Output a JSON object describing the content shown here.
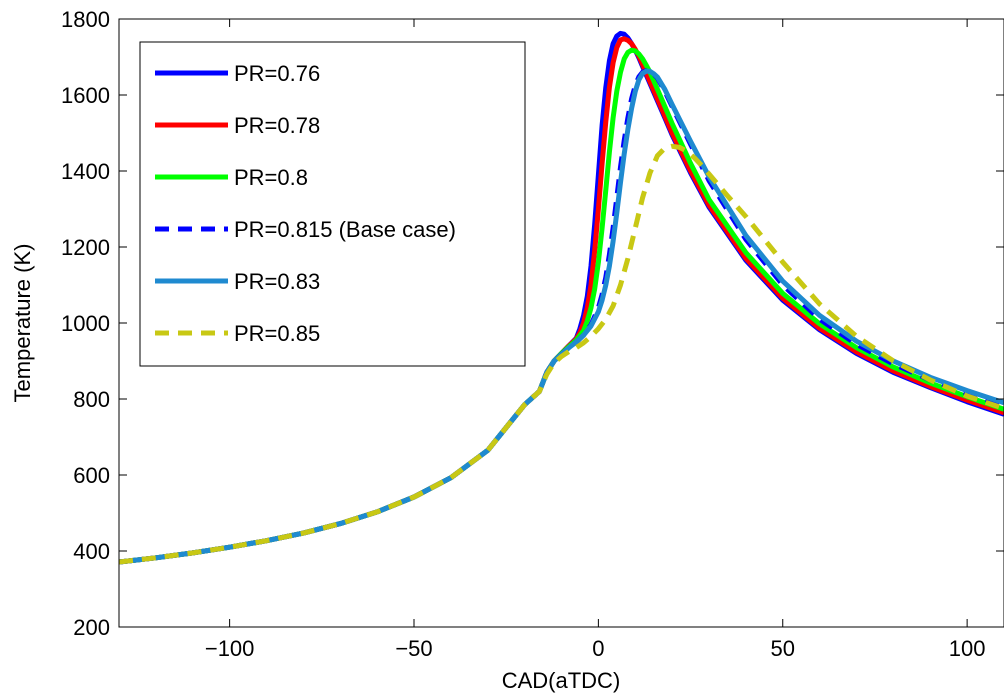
{
  "chart_data": {
    "type": "line",
    "title": "",
    "xlabel": "CAD(aTDC)",
    "ylabel": "Temperature (K)",
    "xlim": [
      -130,
      110
    ],
    "ylim": [
      200,
      1800
    ],
    "x_ticks": [
      -100,
      -50,
      0,
      50,
      100
    ],
    "y_ticks": [
      200,
      400,
      600,
      800,
      1000,
      1200,
      1400,
      1600,
      1800
    ],
    "x_tick_labels": [
      "−100",
      "−50",
      "0",
      "50",
      "100"
    ],
    "y_tick_labels": [
      "200",
      "400",
      "600",
      "800",
      "1000",
      "1200",
      "1400",
      "1600",
      "1800"
    ],
    "grid": false,
    "legend_position": "top-left",
    "series": [
      {
        "name": "PR=0.76",
        "color": "#0000ff",
        "dash": "solid",
        "x": [
          -130,
          -120,
          -110,
          -100,
          -90,
          -80,
          -70,
          -60,
          -50,
          -40,
          -30,
          -20,
          -16,
          -14,
          -12,
          -10,
          -8,
          -6,
          -5,
          -4,
          -3,
          -2,
          -1,
          0,
          1,
          2,
          3,
          4,
          5,
          6,
          7,
          8,
          9,
          10,
          11,
          12,
          14,
          16,
          18,
          20,
          25,
          30,
          40,
          50,
          60,
          70,
          80,
          90,
          100,
          110
        ],
        "y": [
          371,
          382,
          395,
          410,
          427,
          447,
          472,
          503,
          542,
          593,
          665,
          785,
          820,
          870,
          900,
          920,
          940,
          960,
          985,
          1020,
          1070,
          1150,
          1260,
          1390,
          1520,
          1620,
          1690,
          1735,
          1755,
          1762,
          1760,
          1750,
          1735,
          1718,
          1698,
          1675,
          1630,
          1585,
          1540,
          1495,
          1395,
          1305,
          1165,
          1060,
          982,
          920,
          870,
          830,
          793,
          760
        ]
      },
      {
        "name": "PR=0.78",
        "color": "#ff0000",
        "dash": "solid",
        "x": [
          -130,
          -120,
          -110,
          -100,
          -90,
          -80,
          -70,
          -60,
          -50,
          -40,
          -30,
          -20,
          -16,
          -14,
          -12,
          -10,
          -8,
          -6,
          -5,
          -4,
          -3,
          -2,
          -1,
          0,
          1,
          2,
          3,
          4,
          5,
          6,
          7,
          8,
          9,
          10,
          11,
          12,
          14,
          16,
          18,
          20,
          25,
          30,
          40,
          50,
          60,
          70,
          80,
          90,
          100,
          110
        ],
        "y": [
          371,
          382,
          395,
          410,
          427,
          447,
          472,
          503,
          542,
          593,
          665,
          785,
          820,
          870,
          900,
          920,
          940,
          958,
          975,
          1000,
          1040,
          1100,
          1190,
          1300,
          1420,
          1530,
          1620,
          1685,
          1725,
          1745,
          1748,
          1744,
          1735,
          1720,
          1702,
          1680,
          1635,
          1590,
          1545,
          1500,
          1400,
          1310,
          1170,
          1065,
          986,
          924,
          874,
          833,
          797,
          764
        ]
      },
      {
        "name": "PR=0.8",
        "color": "#00ff00",
        "dash": "solid",
        "x": [
          -130,
          -120,
          -110,
          -100,
          -90,
          -80,
          -70,
          -60,
          -50,
          -40,
          -30,
          -20,
          -16,
          -14,
          -12,
          -10,
          -8,
          -6,
          -4,
          -3,
          -2,
          -1,
          0,
          1,
          2,
          3,
          4,
          5,
          6,
          7,
          8,
          9,
          10,
          11,
          12,
          13,
          14,
          16,
          18,
          20,
          25,
          30,
          40,
          50,
          60,
          70,
          80,
          90,
          100,
          110
        ],
        "y": [
          371,
          382,
          395,
          410,
          427,
          447,
          472,
          503,
          542,
          593,
          665,
          785,
          820,
          870,
          900,
          920,
          938,
          955,
          980,
          1005,
          1040,
          1090,
          1160,
          1250,
          1350,
          1450,
          1540,
          1610,
          1660,
          1695,
          1712,
          1718,
          1716,
          1708,
          1695,
          1678,
          1660,
          1615,
          1570,
          1525,
          1420,
          1325,
          1185,
          1078,
          998,
          935,
          884,
          842,
          806,
          773
        ]
      },
      {
        "name": "PR=0.815 (Base case)",
        "color": "#0000ff",
        "dash": "dashed",
        "x": [
          -130,
          -120,
          -110,
          -100,
          -90,
          -80,
          -70,
          -60,
          -50,
          -40,
          -30,
          -20,
          -16,
          -14,
          -12,
          -10,
          -8,
          -6,
          -4,
          -2,
          0,
          1,
          2,
          3,
          4,
          5,
          6,
          7,
          8,
          9,
          10,
          11,
          12,
          13,
          14,
          15,
          16,
          18,
          20,
          25,
          30,
          40,
          50,
          60,
          70,
          80,
          90,
          100,
          110
        ],
        "y": [
          371,
          382,
          395,
          410,
          427,
          447,
          472,
          503,
          542,
          593,
          665,
          785,
          820,
          870,
          900,
          918,
          935,
          950,
          968,
          995,
          1040,
          1075,
          1120,
          1180,
          1250,
          1330,
          1410,
          1480,
          1540,
          1590,
          1625,
          1648,
          1660,
          1664,
          1662,
          1655,
          1645,
          1610,
          1570,
          1470,
          1375,
          1220,
          1100,
          1010,
          944,
          892,
          850,
          815,
          784
        ]
      },
      {
        "name": "PR=0.83",
        "color": "#1f8ad0",
        "dash": "solid",
        "x": [
          -130,
          -120,
          -110,
          -100,
          -90,
          -80,
          -70,
          -60,
          -50,
          -40,
          -30,
          -20,
          -16,
          -14,
          -12,
          -10,
          -8,
          -6,
          -4,
          -2,
          0,
          1,
          2,
          3,
          4,
          5,
          6,
          7,
          8,
          9,
          10,
          11,
          12,
          13,
          14,
          15,
          16,
          18,
          20,
          25,
          30,
          40,
          50,
          60,
          70,
          80,
          90,
          100,
          110
        ],
        "y": [
          371,
          382,
          395,
          410,
          427,
          447,
          472,
          503,
          542,
          593,
          665,
          785,
          820,
          870,
          900,
          918,
          935,
          950,
          968,
          992,
          1030,
          1060,
          1100,
          1150,
          1215,
          1290,
          1370,
          1445,
          1510,
          1565,
          1610,
          1640,
          1657,
          1663,
          1662,
          1656,
          1647,
          1615,
          1575,
          1478,
          1385,
          1230,
          1110,
          1020,
          952,
          900,
          857,
          822,
          790
        ]
      },
      {
        "name": "PR=0.85",
        "color": "#c8c814",
        "dash": "dashed",
        "x": [
          -130,
          -120,
          -110,
          -100,
          -90,
          -80,
          -70,
          -60,
          -50,
          -40,
          -30,
          -20,
          -16,
          -14,
          -12,
          -10,
          -8,
          -6,
          -4,
          -2,
          0,
          2,
          4,
          6,
          8,
          10,
          12,
          14,
          16,
          18,
          20,
          22,
          24,
          26,
          28,
          30,
          35,
          40,
          50,
          60,
          70,
          80,
          90,
          100,
          110
        ],
        "y": [
          371,
          382,
          395,
          410,
          427,
          447,
          472,
          503,
          542,
          593,
          665,
          785,
          820,
          865,
          895,
          912,
          925,
          935,
          948,
          965,
          985,
          1010,
          1045,
          1100,
          1170,
          1250,
          1330,
          1395,
          1440,
          1460,
          1465,
          1462,
          1452,
          1435,
          1415,
          1392,
          1335,
          1280,
          1160,
          1050,
          965,
          900,
          850,
          808,
          775
        ]
      }
    ]
  }
}
